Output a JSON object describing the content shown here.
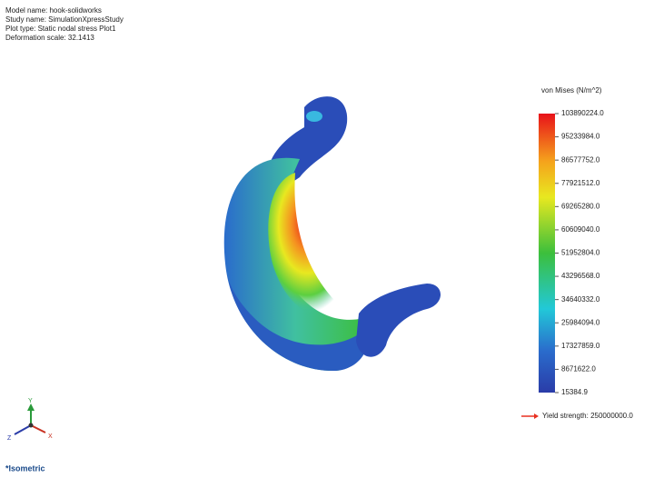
{
  "header": {
    "lines": [
      "Model name: hook-solidworks",
      "Study name: SimulationXpressStudy",
      "Plot type: Static nodal stress Plot1",
      "Deformation scale: 32.1413"
    ]
  },
  "legend": {
    "title": "von Mises (N/m^2)",
    "labels": [
      "103890224.0",
      "95233984.0",
      "86577752.0",
      "77921512.0",
      "69265280.0",
      "60609040.0",
      "51952804.0",
      "43296568.0",
      "34640332.0",
      "25984094.0",
      "17327859.0",
      "8671622.0",
      "15384.9"
    ],
    "yield_strength": "Yield strength: 250000000.0"
  },
  "triad": {
    "y": "Y",
    "x": "X",
    "z": "Z"
  },
  "view": {
    "label": "*Isometric"
  }
}
